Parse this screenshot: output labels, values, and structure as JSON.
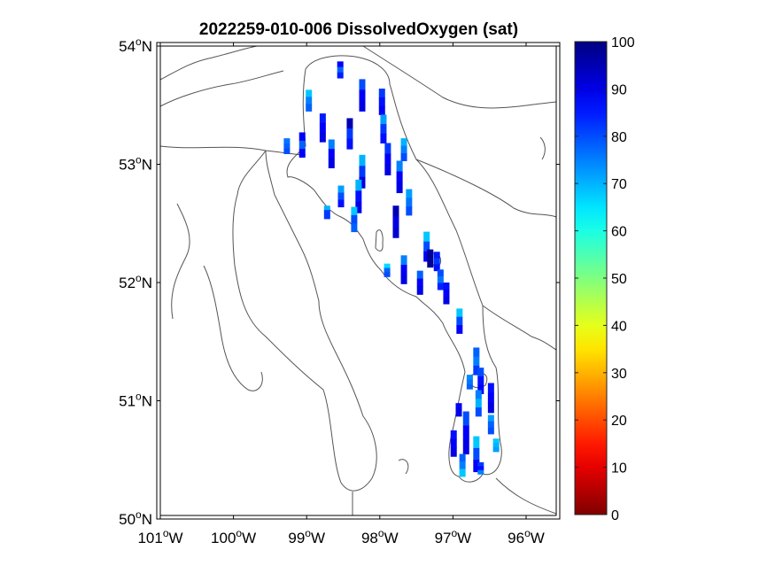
{
  "title": "2022259-010-006 DissolvedOxygen (sat)",
  "map": {
    "lon_range": [
      -101,
      -95.55
    ],
    "lat_range": [
      50,
      54
    ],
    "lon_ticks": [
      {
        "value": -101,
        "label": "101",
        "hemi": "W"
      },
      {
        "value": -100,
        "label": "100",
        "hemi": "W"
      },
      {
        "value": -99,
        "label": "99",
        "hemi": "W"
      },
      {
        "value": -98,
        "label": "98",
        "hemi": "W"
      },
      {
        "value": -97,
        "label": "97",
        "hemi": "W"
      },
      {
        "value": -96,
        "label": "96",
        "hemi": "W"
      }
    ],
    "lat_ticks": [
      {
        "value": 54,
        "label": "54",
        "hemi": "N"
      },
      {
        "value": 53,
        "label": "53",
        "hemi": "N"
      },
      {
        "value": 52,
        "label": "52",
        "hemi": "N"
      },
      {
        "value": 51,
        "label": "51",
        "hemi": "N"
      },
      {
        "value": 50,
        "label": "50",
        "hemi": "N"
      }
    ],
    "degree_symbol": "o"
  },
  "colorbar": {
    "range": [
      0,
      100
    ],
    "colormap": "jet-reversed",
    "ticks": [
      "0",
      "10",
      "20",
      "30",
      "40",
      "50",
      "60",
      "70",
      "80",
      "90",
      "100"
    ]
  },
  "stations": [
    {
      "lon": -98.54,
      "lat": [
        53.87,
        53.73
      ],
      "values": [
        88,
        78,
        85
      ]
    },
    {
      "lon": -98.24,
      "lat": [
        53.72,
        53.45
      ],
      "values": [
        80,
        88,
        90
      ]
    },
    {
      "lon": -97.97,
      "lat": [
        53.64,
        53.42
      ],
      "values": [
        82,
        86,
        88
      ]
    },
    {
      "lon": -98.97,
      "lat": [
        53.63,
        53.45
      ],
      "values": [
        68,
        75,
        78
      ]
    },
    {
      "lon": -98.78,
      "lat": [
        53.43,
        53.19
      ],
      "values": [
        85,
        88,
        90
      ]
    },
    {
      "lon": -98.41,
      "lat": [
        53.39,
        53.13
      ],
      "values": [
        95,
        82,
        86
      ]
    },
    {
      "lon": -97.95,
      "lat": [
        53.42,
        53.18
      ],
      "values": [
        72,
        82,
        86
      ]
    },
    {
      "lon": -99.27,
      "lat": [
        53.22,
        53.09
      ],
      "values": [
        76,
        78,
        80
      ]
    },
    {
      "lon": -99.06,
      "lat": [
        53.27,
        53.06
      ],
      "values": [
        88,
        78,
        88
      ]
    },
    {
      "lon": -98.66,
      "lat": [
        53.21,
        52.97
      ],
      "values": [
        75,
        88,
        90
      ]
    },
    {
      "lon": -98.24,
      "lat": [
        53.08,
        52.8
      ],
      "values": [
        70,
        82,
        90
      ]
    },
    {
      "lon": -97.89,
      "lat": [
        53.18,
        52.91
      ],
      "values": [
        82,
        88,
        90
      ]
    },
    {
      "lon": -97.67,
      "lat": [
        53.22,
        53.03
      ],
      "values": [
        70,
        75,
        80
      ]
    },
    {
      "lon": -97.73,
      "lat": [
        53.03,
        52.76
      ],
      "values": [
        75,
        88,
        90
      ]
    },
    {
      "lon": -98.53,
      "lat": [
        52.82,
        52.64
      ],
      "values": [
        72,
        80,
        86
      ]
    },
    {
      "lon": -98.29,
      "lat": [
        52.87,
        52.59
      ],
      "values": [
        70,
        86,
        90
      ]
    },
    {
      "lon": -98.35,
      "lat": [
        52.64,
        52.43
      ],
      "values": [
        68,
        80,
        78
      ]
    },
    {
      "lon": -98.72,
      "lat": [
        52.65,
        52.54
      ],
      "values": [
        70,
        82,
        82
      ]
    },
    {
      "lon": -97.78,
      "lat": [
        52.65,
        52.38
      ],
      "values": [
        95,
        90,
        92
      ]
    },
    {
      "lon": -97.6,
      "lat": [
        52.79,
        52.57
      ],
      "values": [
        72,
        76,
        80
      ]
    },
    {
      "lon": -97.36,
      "lat": [
        52.43,
        52.18
      ],
      "values": [
        68,
        80,
        88
      ]
    },
    {
      "lon": -97.9,
      "lat": [
        52.16,
        52.05
      ],
      "values": [
        66,
        78,
        80
      ]
    },
    {
      "lon": -97.67,
      "lat": [
        52.23,
        51.99
      ],
      "values": [
        75,
        88,
        90
      ]
    },
    {
      "lon": -97.31,
      "lat": [
        52.28,
        52.13
      ],
      "values": [
        98,
        98,
        98
      ]
    },
    {
      "lon": -97.22,
      "lat": [
        52.26,
        52.1
      ],
      "values": [
        85,
        82,
        86
      ]
    },
    {
      "lon": -97.17,
      "lat": [
        52.11,
        51.94
      ],
      "values": [
        80,
        76,
        84
      ]
    },
    {
      "lon": -97.45,
      "lat": [
        52.1,
        51.9
      ],
      "values": [
        78,
        88,
        90
      ]
    },
    {
      "lon": -97.09,
      "lat": [
        52.0,
        51.82
      ],
      "values": [
        86,
        88,
        90
      ]
    },
    {
      "lon": -96.91,
      "lat": [
        51.78,
        51.57
      ],
      "values": [
        68,
        80,
        88
      ]
    },
    {
      "lon": -96.68,
      "lat": [
        51.45,
        51.22
      ],
      "values": [
        78,
        75,
        82
      ]
    },
    {
      "lon": -96.62,
      "lat": [
        51.28,
        51.06
      ],
      "values": [
        80,
        86,
        88
      ]
    },
    {
      "lon": -96.77,
      "lat": [
        51.22,
        51.1
      ],
      "values": [
        74,
        76,
        78
      ]
    },
    {
      "lon": -96.48,
      "lat": [
        51.15,
        50.9
      ],
      "values": [
        86,
        88,
        90
      ]
    },
    {
      "lon": -96.92,
      "lat": [
        50.98,
        50.87
      ],
      "values": [
        88,
        90,
        90
      ]
    },
    {
      "lon": -96.65,
      "lat": [
        51.09,
        50.87
      ],
      "values": [
        75,
        70,
        80
      ]
    },
    {
      "lon": -96.48,
      "lat": [
        50.88,
        50.72
      ],
      "values": [
        72,
        78,
        80
      ]
    },
    {
      "lon": -96.99,
      "lat": [
        50.75,
        50.53
      ],
      "values": [
        86,
        88,
        90
      ]
    },
    {
      "lon": -96.82,
      "lat": [
        50.91,
        50.55
      ],
      "values": [
        80,
        88,
        90
      ]
    },
    {
      "lon": -96.41,
      "lat": [
        50.68,
        50.57
      ],
      "values": [
        68,
        70,
        72
      ]
    },
    {
      "lon": -96.87,
      "lat": [
        50.55,
        50.36
      ],
      "values": [
        78,
        75,
        68
      ]
    },
    {
      "lon": -96.68,
      "lat": [
        50.7,
        50.4
      ],
      "values": [
        68,
        80,
        88
      ]
    },
    {
      "lon": -96.62,
      "lat": [
        50.48,
        50.38
      ],
      "values": [
        82,
        86,
        75
      ]
    }
  ]
}
